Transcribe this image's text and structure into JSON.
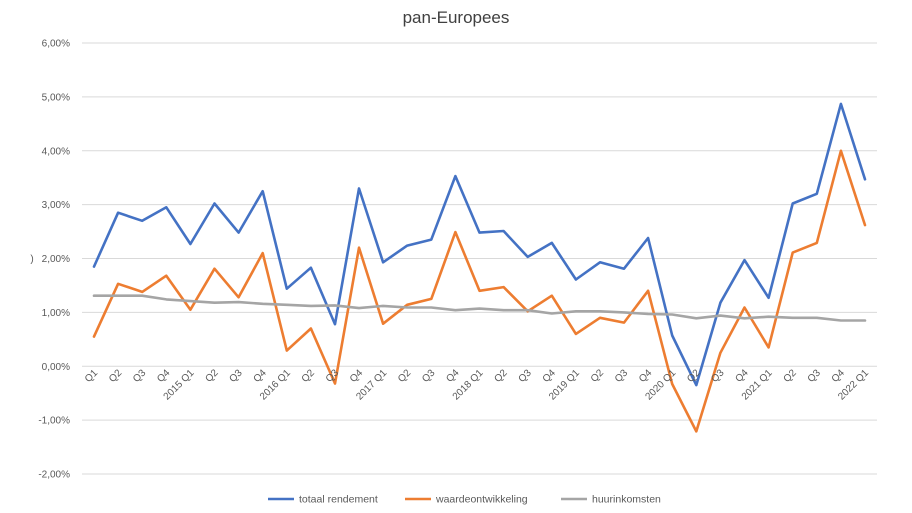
{
  "chart_data": {
    "type": "line",
    "title": "pan-Europees",
    "ylabel": ")",
    "ylim": [
      -2.0,
      6.0
    ],
    "y_ticks": [
      "-2,00%",
      "-1,00%",
      "0,00%",
      "1,00%",
      "2,00%",
      "3,00%",
      "4,00%",
      "5,00%",
      "6,00%"
    ],
    "y_tick_values": [
      -2,
      -1,
      0,
      1,
      2,
      3,
      4,
      5,
      6
    ],
    "grid": true,
    "legend_position": "bottom",
    "categories": [
      "Q1",
      "Q2",
      "Q3",
      "Q4",
      "2015 Q1",
      "Q2",
      "Q3",
      "Q4",
      "2016 Q1",
      "Q2",
      "Q3",
      "Q4",
      "2017 Q1",
      "Q2",
      "Q3",
      "Q4",
      "2018 Q1",
      "Q2",
      "Q3",
      "Q4",
      "2019 Q1",
      "Q2",
      "Q3",
      "Q4",
      "2020 Q1",
      "Q2",
      "Q3",
      "Q4",
      "2021 Q1",
      "Q2",
      "Q3",
      "Q4",
      "2022 Q1"
    ],
    "series": [
      {
        "name": "totaal rendement",
        "color": "#4472C4",
        "values": [
          1.85,
          2.85,
          2.7,
          2.95,
          2.27,
          3.02,
          2.48,
          3.25,
          1.44,
          1.83,
          0.78,
          3.3,
          1.93,
          2.24,
          2.35,
          3.53,
          2.48,
          2.51,
          2.03,
          2.29,
          1.61,
          1.93,
          1.81,
          2.38,
          0.57,
          -0.35,
          1.18,
          1.97,
          1.27,
          3.02,
          3.2,
          4.87,
          3.47
        ]
      },
      {
        "name": "waardeontwikkeling",
        "color": "#ED7D31",
        "values": [
          0.55,
          1.53,
          1.38,
          1.68,
          1.05,
          1.81,
          1.28,
          2.1,
          0.29,
          0.7,
          -0.32,
          2.2,
          0.79,
          1.14,
          1.25,
          2.49,
          1.4,
          1.47,
          1.02,
          1.31,
          0.6,
          0.9,
          0.81,
          1.4,
          -0.33,
          -1.21,
          0.25,
          1.09,
          0.35,
          2.11,
          2.29,
          4.0,
          2.62
        ]
      },
      {
        "name": "huurinkomsten",
        "color": "#A5A5A5",
        "values": [
          1.31,
          1.31,
          1.31,
          1.24,
          1.21,
          1.18,
          1.19,
          1.16,
          1.14,
          1.12,
          1.13,
          1.08,
          1.12,
          1.09,
          1.09,
          1.04,
          1.07,
          1.04,
          1.04,
          0.98,
          1.02,
          1.02,
          1.0,
          0.97,
          0.96,
          0.89,
          0.94,
          0.89,
          0.92,
          0.9,
          0.9,
          0.85,
          0.85
        ]
      }
    ]
  }
}
